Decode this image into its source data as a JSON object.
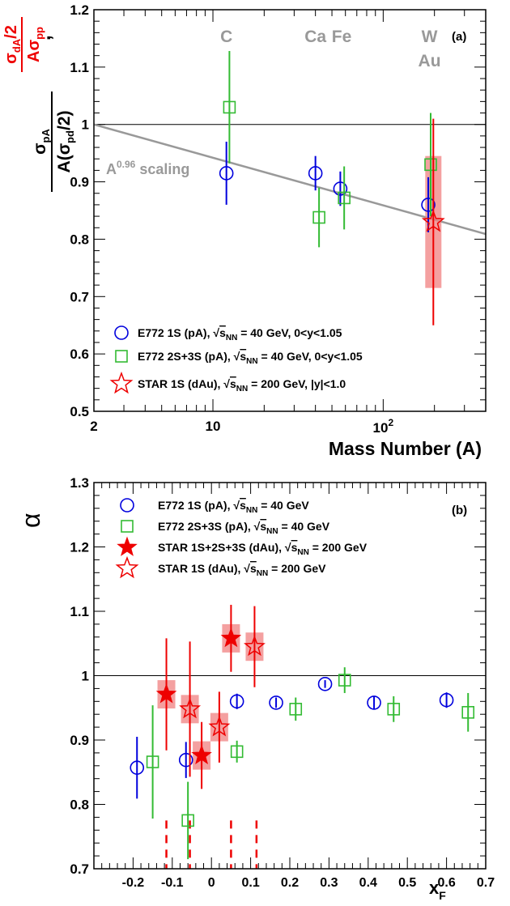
{
  "chart_data": [
    {
      "panel_label": "(a)",
      "type": "scatter",
      "xlabel": "Mass Number (A)",
      "xscale": "log",
      "xlim": [
        2,
        400
      ],
      "xticks": [
        "2",
        "10",
        "10²"
      ],
      "ylim": [
        0.5,
        1.2
      ],
      "yticks": [
        "0.5",
        "0.6",
        "0.7",
        "0.8",
        "0.9",
        "1",
        "1.1",
        "1.2"
      ],
      "ylabel_black": "σpA / A(σpd/2)",
      "ylabel_red": "σdA/2 / Aσpp",
      "reference_line": 1,
      "scaling_curve": {
        "label": "A0.96 scaling",
        "alpha": 0.96
      },
      "nuclei_labels": [
        {
          "text": "C",
          "A": 12
        },
        {
          "text": "Ca",
          "A": 40
        },
        {
          "text": "Fe",
          "A": 56
        },
        {
          "text": "W",
          "A": 184
        },
        {
          "text": "Au",
          "A": 197
        }
      ],
      "series": [
        {
          "name": "E772 1S (pA), √sNN = 40 GeV, 0<y<1.05",
          "color": "#0000dd",
          "marker": "circle",
          "points": [
            {
              "x": 12,
              "y": 0.915,
              "err": 0.055
            },
            {
              "x": 40,
              "y": 0.915,
              "err": 0.03
            },
            {
              "x": 56,
              "y": 0.888,
              "err": 0.03
            },
            {
              "x": 184,
              "y": 0.86,
              "err": 0.048
            }
          ]
        },
        {
          "name": "E772 2S+3S (pA), √sNN = 40 GeV, 0<y<1.05",
          "color": "#33bb33",
          "marker": "square",
          "points": [
            {
              "x": 12.5,
              "y": 1.03,
              "err": 0.098
            },
            {
              "x": 42,
              "y": 0.838,
              "err": 0.052
            },
            {
              "x": 59,
              "y": 0.872,
              "err": 0.055
            },
            {
              "x": 190,
              "y": 0.93,
              "err": 0.09
            }
          ]
        },
        {
          "name": "STAR 1S (dAu), √sNN = 200 GeV, |y|<1.0",
          "color": "#ee0000",
          "marker": "star-open",
          "points": [
            {
              "x": 197,
              "y": 0.83,
              "err": 0.18,
              "sys": 0.115
            }
          ]
        }
      ]
    },
    {
      "panel_label": "(b)",
      "type": "scatter",
      "xlabel": "xF",
      "xlim": [
        -0.3,
        0.7
      ],
      "xticks": [
        "-0.2",
        "-0.1",
        "0",
        "0.1",
        "0.2",
        "0.3",
        "0.4",
        "0.5",
        "0.6",
        "0.7"
      ],
      "ylim": [
        0.7,
        1.3
      ],
      "yticks": [
        "0.7",
        "0.8",
        "0.9",
        "1",
        "1.1",
        "1.2",
        "1.3"
      ],
      "ylabel": "α",
      "reference_line": 1,
      "dashed_markers_x": [
        -0.115,
        -0.055,
        0.05,
        0.115
      ],
      "series": [
        {
          "name": "E772 1S (pA), √sNN = 40 GeV",
          "color": "#0000dd",
          "marker": "circle",
          "points": [
            {
              "x": -0.19,
              "y": 0.857,
              "err": 0.048
            },
            {
              "x": -0.065,
              "y": 0.869,
              "err": 0.028
            },
            {
              "x": 0.065,
              "y": 0.96,
              "err": 0.012
            },
            {
              "x": 0.165,
              "y": 0.958,
              "err": 0.008
            },
            {
              "x": 0.29,
              "y": 0.987,
              "err": 0.006
            },
            {
              "x": 0.415,
              "y": 0.958,
              "err": 0.01
            },
            {
              "x": 0.6,
              "y": 0.962,
              "err": 0.012
            }
          ]
        },
        {
          "name": "E772 2S+3S (pA), √sNN = 40 GeV",
          "color": "#33bb33",
          "marker": "square",
          "points": [
            {
              "x": -0.15,
              "y": 0.866,
              "err": 0.088
            },
            {
              "x": -0.06,
              "y": 0.775,
              "err": 0.06
            },
            {
              "x": 0.065,
              "y": 0.882,
              "err": 0.017
            },
            {
              "x": 0.215,
              "y": 0.948,
              "err": 0.018
            },
            {
              "x": 0.34,
              "y": 0.993,
              "err": 0.02
            },
            {
              "x": 0.465,
              "y": 0.948,
              "err": 0.02
            },
            {
              "x": 0.655,
              "y": 0.943,
              "err": 0.03
            }
          ]
        },
        {
          "name": "STAR 1S+2S+3S (dAu), √sNN = 200 GeV",
          "color": "#ee0000",
          "marker": "star-filled",
          "points": [
            {
              "x": -0.115,
              "y": 0.971,
              "err": 0.087,
              "sys": 0.022
            },
            {
              "x": -0.025,
              "y": 0.876,
              "err": 0.052,
              "sys": 0.022
            },
            {
              "x": 0.05,
              "y": 1.058,
              "err": 0.052,
              "sys": 0.022
            }
          ]
        },
        {
          "name": "STAR 1S (dAu), √sNN = 200 GeV",
          "color": "#ee0000",
          "marker": "star-open",
          "points": [
            {
              "x": -0.055,
              "y": 0.948,
              "err": 0.105,
              "sys": 0.022
            },
            {
              "x": 0.02,
              "y": 0.92,
              "err": 0.055,
              "sys": 0.022
            },
            {
              "x": 0.11,
              "y": 1.045,
              "err": 0.063,
              "sys": 0.022
            }
          ]
        }
      ]
    }
  ]
}
